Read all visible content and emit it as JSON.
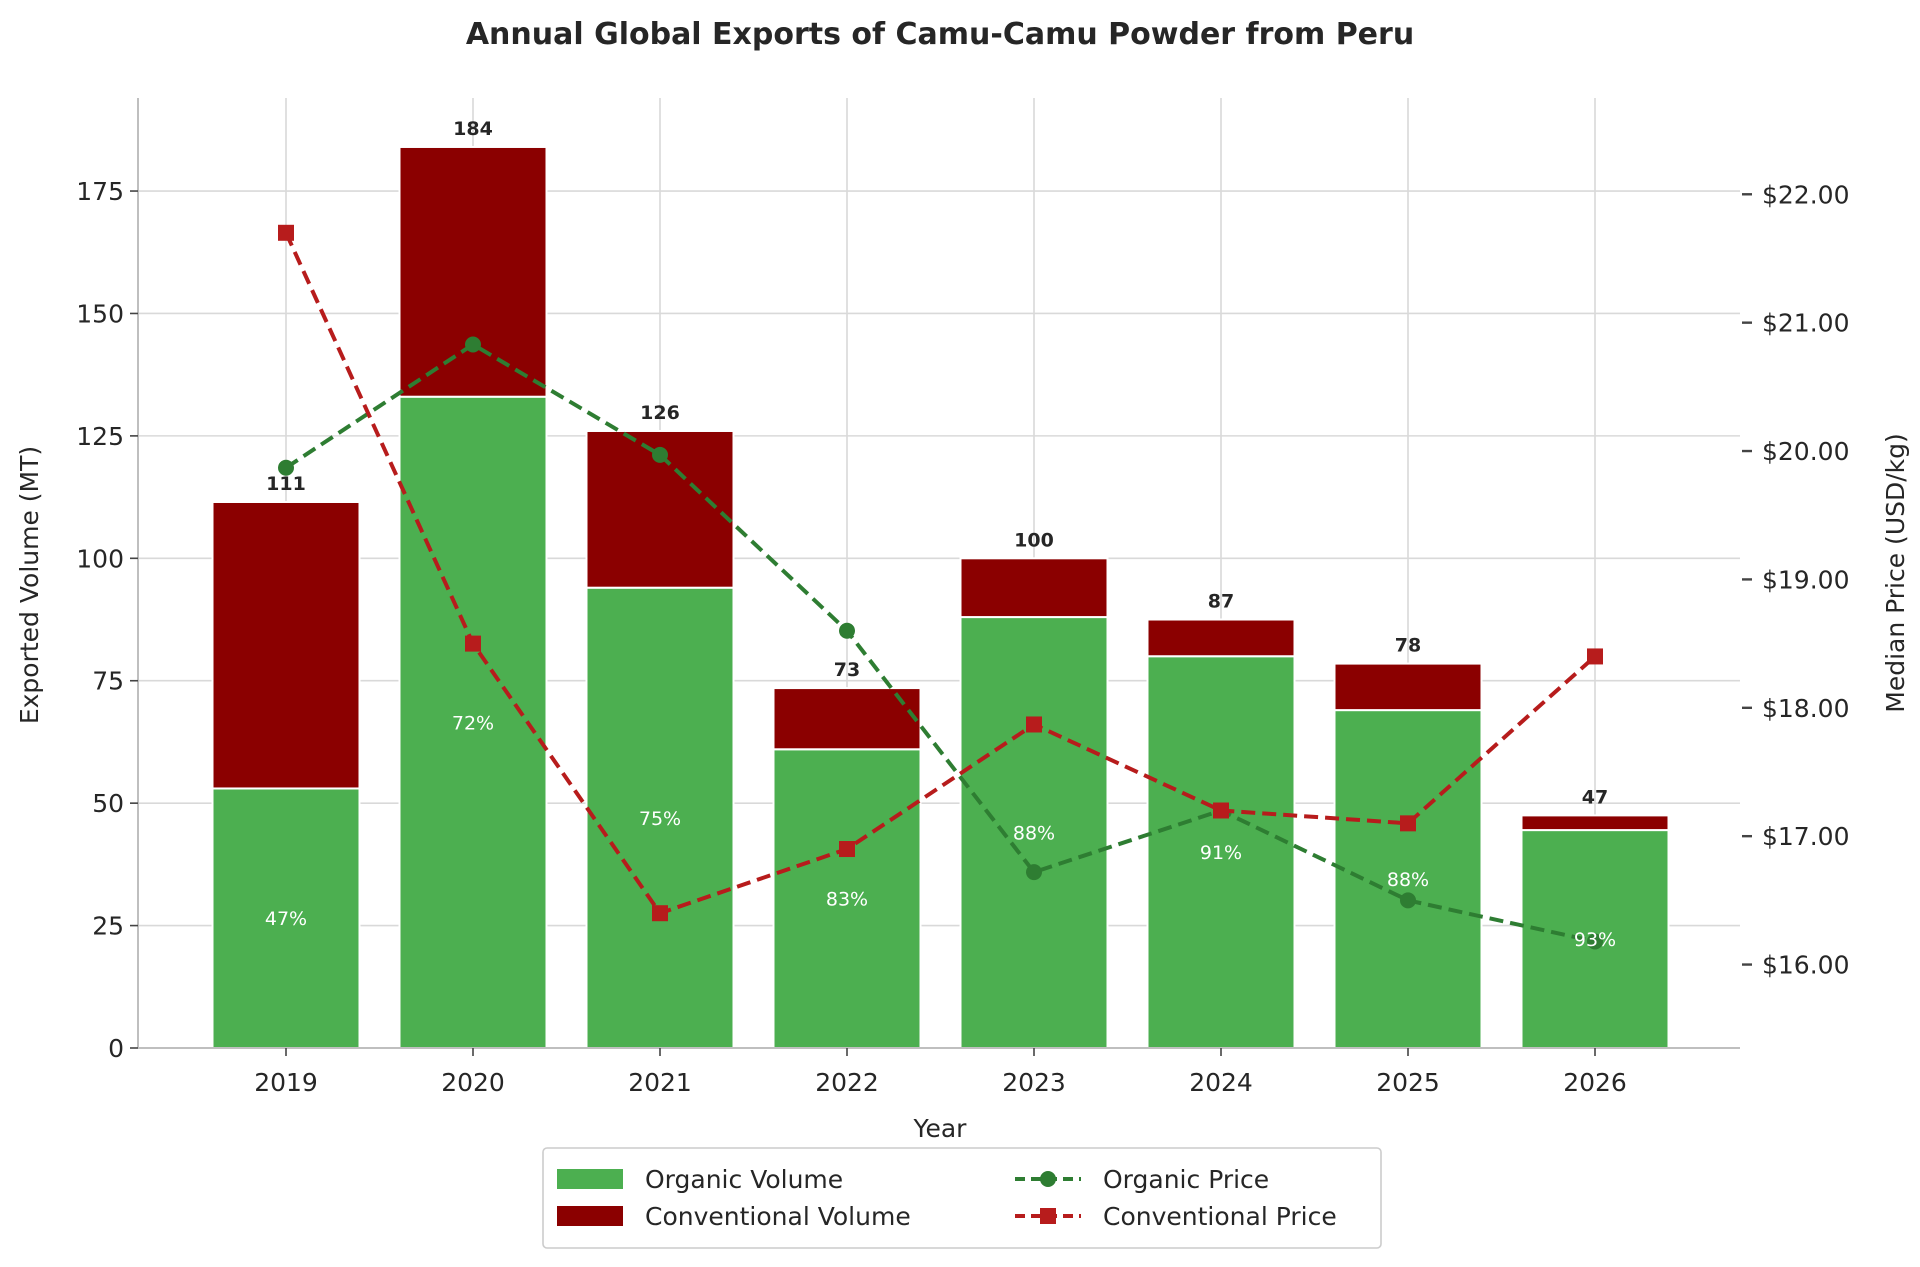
{
  "chart_data": {
    "type": "bar",
    "title": "Annual Global Exports of Camu-Camu Powder from Peru",
    "xlabel": "Year",
    "ylabel": "Exported Volume (MT)",
    "y2label": "Median Price (USD/kg)",
    "categories": [
      "2019",
      "2020",
      "2021",
      "2022",
      "2023",
      "2024",
      "2025",
      "2026"
    ],
    "ylim": [
      0,
      194
    ],
    "y2lim": [
      15.35,
      22.75
    ],
    "yticks": [
      0,
      25,
      50,
      75,
      100,
      125,
      150,
      175
    ],
    "y2ticks": [
      16,
      17,
      18,
      19,
      20,
      21,
      22
    ],
    "y2tick_labels": [
      "$16.00",
      "$17.00",
      "$18.00",
      "$19.00",
      "$20.00",
      "$21.00",
      "$22.00"
    ],
    "grid": true,
    "legend_position": "bottom-center",
    "series": [
      {
        "name": "Organic Volume",
        "kind": "bar-stack-bottom",
        "color": "#4caf50",
        "values": [
          53,
          133,
          94,
          61,
          88,
          80,
          69,
          44.5
        ]
      },
      {
        "name": "Conventional Volume",
        "kind": "bar-stack-top",
        "color": "#8b0000",
        "values": [
          58.5,
          51,
          32,
          12.5,
          12,
          7.5,
          9.5,
          3
        ]
      },
      {
        "name": "Organic Price",
        "kind": "line",
        "marker": "circle",
        "color": "#2e7d32",
        "values": [
          19.87,
          20.83,
          19.97,
          18.6,
          16.72,
          17.2,
          16.5,
          16.18
        ]
      },
      {
        "name": "Conventional Price",
        "kind": "line",
        "marker": "square",
        "color": "#b71c1c",
        "values": [
          21.7,
          18.5,
          16.4,
          16.9,
          17.87,
          17.2,
          17.1,
          18.4
        ]
      }
    ],
    "totals": [
      "111",
      "184",
      "126",
      "73",
      "100",
      "87",
      "78",
      "47"
    ],
    "organic_share_labels": [
      "47%",
      "72%",
      "75%",
      "83%",
      "88%",
      "91%",
      "88%",
      "93%"
    ]
  }
}
